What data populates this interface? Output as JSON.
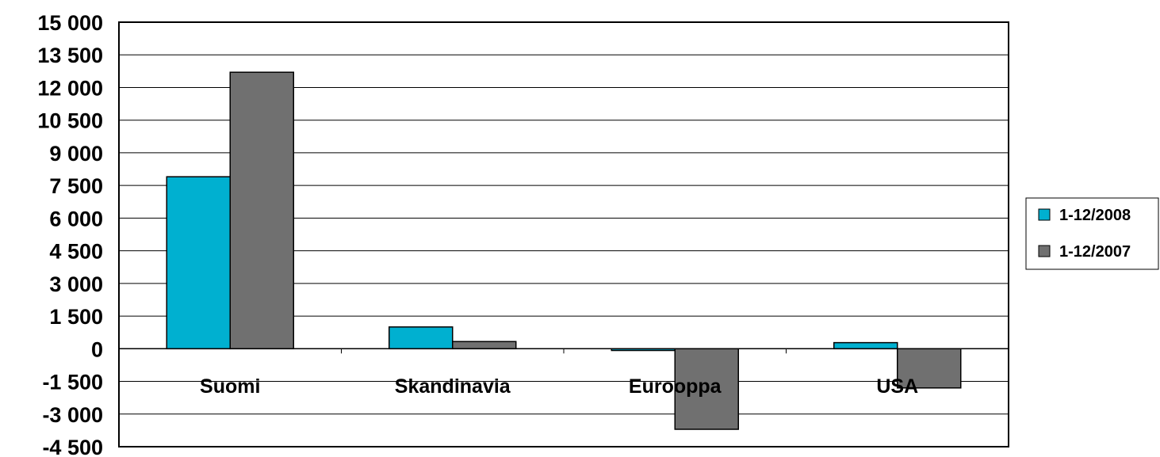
{
  "chart_data": {
    "type": "bar",
    "categories": [
      "Suomi",
      "Skandinavia",
      "Eurooppa",
      "USA"
    ],
    "series": [
      {
        "name": "1-12/2008",
        "values": [
          7900,
          1000,
          -80,
          280
        ],
        "color": "#00B0D0"
      },
      {
        "name": "1-12/2007",
        "values": [
          12700,
          330,
          -3700,
          -1800
        ],
        "color": "#707070"
      }
    ],
    "ylim": [
      -4500,
      15000
    ],
    "yticks": [
      15000,
      13500,
      12000,
      10500,
      9000,
      7500,
      6000,
      4500,
      3000,
      1500,
      0,
      -1500,
      -3000,
      -4500
    ],
    "ytick_labels": [
      "15 000",
      "13 500",
      "12 000",
      "10 500",
      "9 000",
      "7 500",
      "6 000",
      "4 500",
      "3 000",
      "1 500",
      "0",
      "-1 500",
      "-3 000",
      "-4 500"
    ],
    "grid": true,
    "legend_position": "right",
    "title": "",
    "xlabel": "",
    "ylabel": ""
  }
}
